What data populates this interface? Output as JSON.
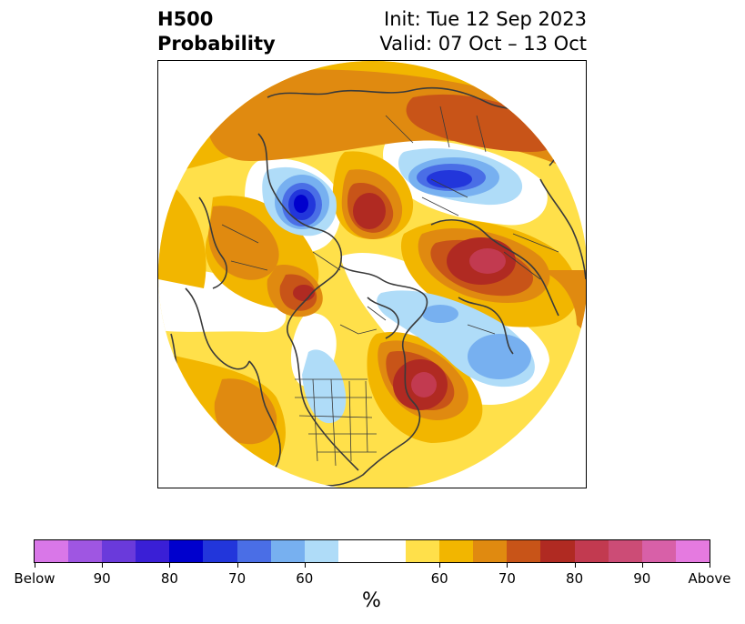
{
  "title": {
    "left_line1": "H500",
    "left_line2": "Probability",
    "right_line1": "Init: Tue 12 Sep 2023",
    "right_line2": "Valid: 07 Oct – 13 Oct"
  },
  "colorbar": {
    "unit": "%",
    "colors": [
      "#d977e8",
      "#9f56e2",
      "#6a3adb",
      "#3a1fd6",
      "#0000cd",
      "#2236db",
      "#4a6ee6",
      "#77b0f0",
      "#afdcf8",
      "#ffffff",
      "#ffffff",
      "#ffe04a",
      "#f2b600",
      "#e08a10",
      "#c85418",
      "#b02a22",
      "#c23a50",
      "#cc4c76",
      "#d860a8",
      "#e57ae0"
    ],
    "tick_labels": [
      "Below",
      "90",
      "80",
      "70",
      "60",
      "60",
      "70",
      "80",
      "90",
      "Above"
    ]
  },
  "map": {
    "projection": "north-polar-stereographic",
    "field": "500 hPa height anomaly probability",
    "legend_colors": {
      "below_strong": "#0000cd",
      "below_mid": "#4a6ee6",
      "below_weak": "#afdcf8",
      "neutral": "#ffffff",
      "above_weak": "#ffe04a",
      "above_mid": "#e08a10",
      "above_strong": "#b02a22",
      "above_very_strong": "#c23a50"
    }
  }
}
